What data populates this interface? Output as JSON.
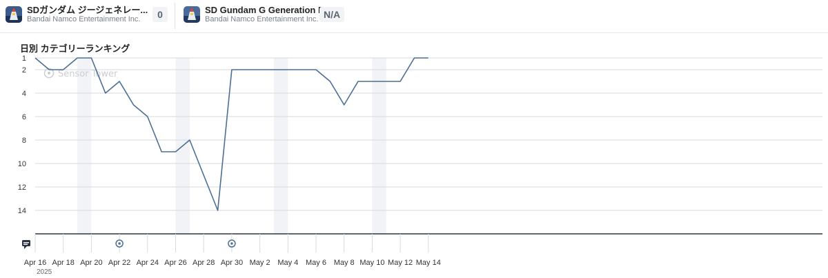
{
  "apps": [
    {
      "name": "SDガンダム ジージェネレー...",
      "publisher": "Bandai Namco Entertainment Inc.",
      "rank": "0",
      "icon": "gundam-app-icon"
    },
    {
      "name": "SD Gundam G Generation E...",
      "publisher": "Bandai Namco Entertainment Inc.",
      "rank": "N/A",
      "icon": "gundam-app-icon"
    }
  ],
  "chart_title": "日別 カテゴリーランキング",
  "watermark": "Sensor Tower",
  "colors": {
    "line": "#4b6e94",
    "weekend_band": "#f1f3f6",
    "grid": "#d6d9de",
    "axis": "#2b3440"
  },
  "chart_data": {
    "type": "line",
    "title": "日別 カテゴリーランキング",
    "y_axis": {
      "reversed": true,
      "ticks": [
        1,
        2,
        4,
        6,
        8,
        10,
        12,
        14
      ],
      "range": [
        1,
        16
      ]
    },
    "x_labels": [
      "Apr 16",
      "Apr 18",
      "Apr 20",
      "Apr 22",
      "Apr 24",
      "Apr 26",
      "Apr 28",
      "Apr 30",
      "May 2",
      "May 4",
      "May 6",
      "May 8",
      "May 10",
      "May 12",
      "May 14"
    ],
    "year_label": "2025",
    "grid": true,
    "weekend_bands": [
      [
        "2025-04-19",
        "2025-04-20"
      ],
      [
        "2025-04-26",
        "2025-04-27"
      ],
      [
        "2025-05-03",
        "2025-05-04"
      ],
      [
        "2025-05-10",
        "2025-05-11"
      ]
    ],
    "series": [
      {
        "points": [
          [
            "2025-04-16",
            1
          ],
          [
            "2025-04-17",
            2
          ],
          [
            "2025-04-18",
            2
          ],
          [
            "2025-04-19",
            1
          ],
          [
            "2025-04-20",
            1
          ],
          [
            "2025-04-21",
            4
          ],
          [
            "2025-04-22",
            3
          ],
          [
            "2025-04-23",
            5
          ],
          [
            "2025-04-24",
            6
          ],
          [
            "2025-04-25",
            9
          ],
          [
            "2025-04-26",
            9
          ],
          [
            "2025-04-27",
            8
          ],
          [
            "2025-04-28",
            11
          ],
          [
            "2025-04-29",
            14
          ],
          [
            "2025-04-30",
            2
          ],
          [
            "2025-05-01",
            2
          ],
          [
            "2025-05-02",
            2
          ],
          [
            "2025-05-03",
            2
          ],
          [
            "2025-05-04",
            2
          ],
          [
            "2025-05-05",
            2
          ],
          [
            "2025-05-06",
            2
          ],
          [
            "2025-05-07",
            3
          ],
          [
            "2025-05-08",
            5
          ],
          [
            "2025-05-09",
            3
          ],
          [
            "2025-05-10",
            3
          ],
          [
            "2025-05-11",
            3
          ],
          [
            "2025-05-12",
            3
          ],
          [
            "2025-05-13",
            1
          ],
          [
            "2025-05-14",
            1
          ]
        ]
      }
    ],
    "annotation_markers": [
      "2025-04-22",
      "2025-04-30"
    ]
  }
}
